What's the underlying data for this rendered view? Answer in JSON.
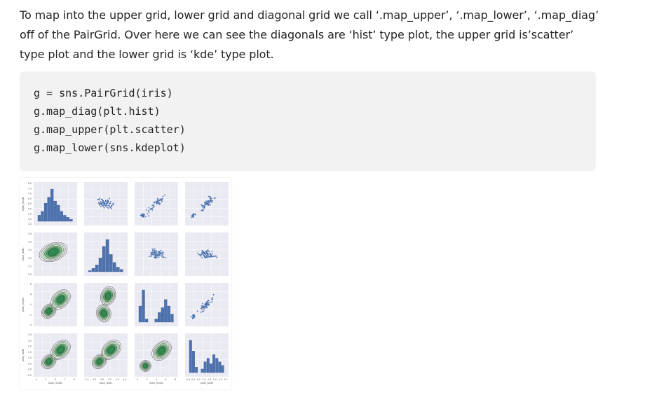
{
  "paragraph": {
    "text": "To map into the upper grid, lower grid and diagonal grid we call ‘.map_upper’, ‘.map_lower’, ‘.map_diag’ off of the PairGrid. Over here we can see the diagonals are ‘hist’ type plot, the upper grid is’scatter’ type plot and the lower grid is ‘kde’ type plot."
  },
  "code": {
    "lines": [
      "g = sns.PairGrid(iris)",
      "g.map_diag(plt.hist)",
      "g.map_upper(plt.scatter)",
      "g.map_lower(sns.kdeplot)"
    ]
  },
  "figure": {
    "variables": [
      "sepal_length",
      "sepal_width",
      "petal_length",
      "petal_width"
    ],
    "y_ticks": {
      "sepal_length": [
        "8.0",
        "7.5",
        "7.0",
        "6.5",
        "6.0",
        "5.5",
        "5.0",
        "4.5",
        "4.0"
      ],
      "sepal_width": [
        "4.5",
        "4.0",
        "3.5",
        "3.0",
        "2.5",
        "2.0"
      ],
      "petal_length": [
        "8",
        "6",
        "4",
        "2",
        "0"
      ],
      "petal_width": [
        "3.0",
        "2.5",
        "2.0",
        "1.5",
        "1.0",
        "0.5",
        "0.0",
        "-0.5"
      ]
    },
    "x_ticks": {
      "sepal_length": [
        "4",
        "5",
        "6",
        "7",
        "8"
      ],
      "sepal_width": [
        "2.0",
        "2.5",
        "3.0",
        "3.5",
        "4.0",
        "4.5"
      ],
      "petal_length": [
        "0",
        "2",
        "4",
        "6",
        "8"
      ],
      "petal_width": [
        "-0.5",
        "0.0",
        "0.5",
        "1.0",
        "1.5",
        "2.0",
        "2.5",
        "3.0"
      ]
    },
    "colors": {
      "panel_bg": "#eaeaf2",
      "grid": "#ffffff",
      "bar": "#4c72b0",
      "bar_edge": "#2f4f86",
      "point": "#4c72b0",
      "kde_line": "#333333",
      "kde_fill_outer": "#d8ecd8",
      "kde_fill_mid": "#7fbf8a",
      "kde_fill_inner": "#2f8a4f"
    }
  }
}
